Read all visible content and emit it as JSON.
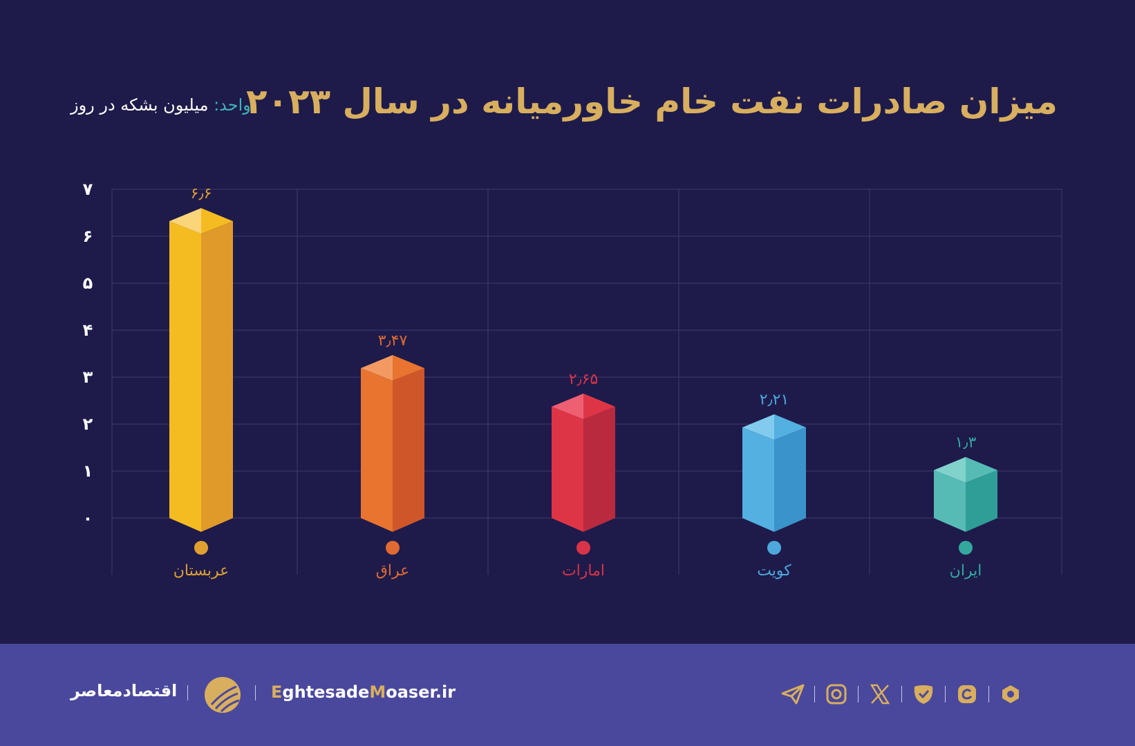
{
  "title": "میزان صادرات نفت خام خاورمیانه در سال ۲۰۲۳",
  "unit": {
    "key": "واحد:",
    "value": "میلیون بشکه در روز"
  },
  "chart_data": {
    "type": "bar",
    "title": "میزان صادرات نفت خام خاورمیانه در سال ۲۰۲۳",
    "ylabel": "میلیون بشکه در روز",
    "ylim": [
      0,
      7
    ],
    "yticks": [
      0,
      1,
      2,
      3,
      4,
      5,
      6,
      7
    ],
    "ytick_labels": [
      "۰",
      "۱",
      "۲",
      "۳",
      "۴",
      "۵",
      "۶",
      "۷"
    ],
    "grid": true,
    "categories": [
      "عربستان",
      "عراق",
      "امارات",
      "کویت",
      "ایران"
    ],
    "values": [
      6.6,
      3.47,
      2.65,
      2.21,
      1.3
    ],
    "value_labels": [
      "۶٫۶",
      "۳٫۴۷",
      "۲٫۶۵",
      "۲٫۲۱",
      "۱٫۳"
    ],
    "colors": [
      {
        "label": "#e0a030",
        "front": "#f5bc22",
        "side": "#e09a2a",
        "topL": "#fbd57a",
        "topR": "#f5bc22"
      },
      {
        "label": "#e06a32",
        "front": "#e8742f",
        "side": "#cf5629",
        "topL": "#f39a62",
        "topR": "#e8742f"
      },
      {
        "label": "#d93447",
        "front": "#de3546",
        "side": "#b92a3f",
        "topL": "#ef5f72",
        "topR": "#de3546"
      },
      {
        "label": "#4ea8dc",
        "front": "#53b0e0",
        "side": "#3a93ca",
        "topL": "#82cbef",
        "topR": "#53b0e0"
      },
      {
        "label": "#34a89f",
        "front": "#57bbb5",
        "side": "#2e9e96",
        "topL": "#80d2cb",
        "topR": "#57bbb5"
      }
    ]
  },
  "footer": {
    "brand_fa": "اقتصادمعاصر",
    "site_first": "E",
    "site_mid": "ghtesade",
    "site_m": "M",
    "site_end": "oaser.ir",
    "icons": [
      "telegram-icon",
      "instagram-icon",
      "x-icon",
      "eitaa-icon",
      "rubika-icon",
      "bale-icon"
    ]
  }
}
